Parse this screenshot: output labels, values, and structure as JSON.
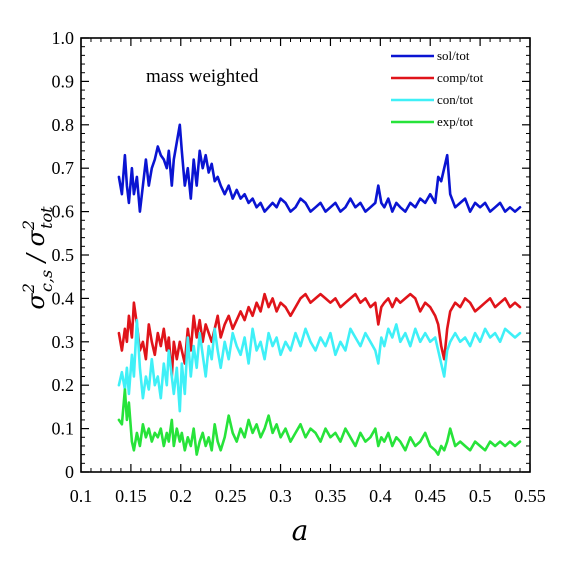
{
  "chart_data": {
    "type": "line",
    "annotation": "mass weighted",
    "xlabel": "a",
    "ylabel": {
      "base": "σ",
      "num_sub": "c,s",
      "den_sub": "tot",
      "sup": "2"
    },
    "xlim": [
      0.1,
      0.55
    ],
    "ylim": [
      0,
      1.0
    ],
    "xticks": [
      "0.1",
      "0.15",
      "0.2",
      "0.25",
      "0.3",
      "0.35",
      "0.4",
      "0.45",
      "0.5",
      "0.55"
    ],
    "yticks": [
      "0",
      "0.1",
      "0.2",
      "0.3",
      "0.4",
      "0.5",
      "0.6",
      "0.7",
      "0.8",
      "0.9",
      "1.0"
    ],
    "legend_position": "top-right",
    "series": [
      {
        "name": "sol/tot",
        "color": "#0a14d2",
        "x": [
          0.138,
          0.141,
          0.144,
          0.146,
          0.148,
          0.151,
          0.153,
          0.156,
          0.159,
          0.162,
          0.165,
          0.168,
          0.171,
          0.174,
          0.177,
          0.18,
          0.183,
          0.186,
          0.188,
          0.191,
          0.193,
          0.196,
          0.199,
          0.201,
          0.204,
          0.207,
          0.21,
          0.213,
          0.216,
          0.219,
          0.222,
          0.225,
          0.228,
          0.231,
          0.234,
          0.237,
          0.24,
          0.244,
          0.248,
          0.252,
          0.256,
          0.26,
          0.264,
          0.268,
          0.272,
          0.276,
          0.28,
          0.284,
          0.288,
          0.292,
          0.296,
          0.3,
          0.305,
          0.31,
          0.315,
          0.32,
          0.325,
          0.33,
          0.335,
          0.34,
          0.345,
          0.35,
          0.355,
          0.36,
          0.365,
          0.37,
          0.375,
          0.38,
          0.385,
          0.39,
          0.395,
          0.398,
          0.401,
          0.404,
          0.408,
          0.412,
          0.416,
          0.42,
          0.425,
          0.43,
          0.435,
          0.44,
          0.445,
          0.45,
          0.455,
          0.458,
          0.461,
          0.464,
          0.467,
          0.47,
          0.475,
          0.48,
          0.485,
          0.49,
          0.495,
          0.5,
          0.505,
          0.51,
          0.515,
          0.52,
          0.525,
          0.53,
          0.535,
          0.54
        ],
        "y": [
          0.68,
          0.64,
          0.73,
          0.66,
          0.62,
          0.7,
          0.64,
          0.68,
          0.6,
          0.66,
          0.72,
          0.66,
          0.7,
          0.72,
          0.75,
          0.73,
          0.72,
          0.7,
          0.74,
          0.66,
          0.72,
          0.76,
          0.8,
          0.74,
          0.66,
          0.7,
          0.63,
          0.72,
          0.66,
          0.74,
          0.7,
          0.73,
          0.69,
          0.71,
          0.67,
          0.68,
          0.66,
          0.64,
          0.66,
          0.63,
          0.65,
          0.63,
          0.64,
          0.62,
          0.63,
          0.61,
          0.62,
          0.6,
          0.61,
          0.62,
          0.61,
          0.63,
          0.62,
          0.6,
          0.61,
          0.63,
          0.62,
          0.6,
          0.61,
          0.62,
          0.6,
          0.61,
          0.62,
          0.6,
          0.61,
          0.63,
          0.61,
          0.62,
          0.6,
          0.61,
          0.62,
          0.66,
          0.62,
          0.61,
          0.63,
          0.6,
          0.62,
          0.61,
          0.6,
          0.62,
          0.61,
          0.63,
          0.62,
          0.64,
          0.62,
          0.68,
          0.67,
          0.7,
          0.73,
          0.64,
          0.61,
          0.62,
          0.63,
          0.6,
          0.62,
          0.61,
          0.62,
          0.6,
          0.61,
          0.62,
          0.6,
          0.61,
          0.6,
          0.61
        ]
      },
      {
        "name": "comp/tot",
        "color": "#e0141a",
        "x": [
          0.138,
          0.141,
          0.144,
          0.146,
          0.148,
          0.151,
          0.153,
          0.156,
          0.159,
          0.162,
          0.165,
          0.168,
          0.171,
          0.174,
          0.177,
          0.18,
          0.183,
          0.186,
          0.188,
          0.191,
          0.193,
          0.196,
          0.199,
          0.201,
          0.204,
          0.207,
          0.21,
          0.213,
          0.216,
          0.219,
          0.222,
          0.225,
          0.228,
          0.231,
          0.234,
          0.237,
          0.24,
          0.244,
          0.248,
          0.252,
          0.256,
          0.26,
          0.264,
          0.268,
          0.272,
          0.276,
          0.28,
          0.284,
          0.288,
          0.292,
          0.296,
          0.3,
          0.305,
          0.31,
          0.315,
          0.32,
          0.325,
          0.33,
          0.335,
          0.34,
          0.345,
          0.35,
          0.355,
          0.36,
          0.365,
          0.37,
          0.375,
          0.38,
          0.385,
          0.39,
          0.395,
          0.398,
          0.401,
          0.404,
          0.408,
          0.412,
          0.416,
          0.42,
          0.425,
          0.43,
          0.435,
          0.44,
          0.445,
          0.45,
          0.455,
          0.458,
          0.461,
          0.464,
          0.467,
          0.47,
          0.475,
          0.48,
          0.485,
          0.49,
          0.495,
          0.5,
          0.505,
          0.51,
          0.515,
          0.52,
          0.525,
          0.53,
          0.535,
          0.54
        ],
        "y": [
          0.32,
          0.28,
          0.33,
          0.3,
          0.36,
          0.31,
          0.39,
          0.34,
          0.28,
          0.3,
          0.26,
          0.34,
          0.3,
          0.27,
          0.32,
          0.29,
          0.33,
          0.28,
          0.31,
          0.22,
          0.3,
          0.26,
          0.3,
          0.28,
          0.25,
          0.33,
          0.28,
          0.36,
          0.31,
          0.35,
          0.3,
          0.34,
          0.32,
          0.3,
          0.33,
          0.36,
          0.31,
          0.34,
          0.36,
          0.33,
          0.35,
          0.37,
          0.35,
          0.38,
          0.36,
          0.39,
          0.37,
          0.41,
          0.38,
          0.4,
          0.37,
          0.39,
          0.38,
          0.36,
          0.38,
          0.4,
          0.41,
          0.39,
          0.4,
          0.41,
          0.4,
          0.39,
          0.4,
          0.38,
          0.39,
          0.4,
          0.41,
          0.39,
          0.4,
          0.38,
          0.39,
          0.34,
          0.38,
          0.39,
          0.4,
          0.38,
          0.4,
          0.39,
          0.4,
          0.41,
          0.4,
          0.37,
          0.39,
          0.38,
          0.36,
          0.34,
          0.29,
          0.26,
          0.33,
          0.37,
          0.39,
          0.38,
          0.4,
          0.39,
          0.37,
          0.38,
          0.39,
          0.4,
          0.38,
          0.39,
          0.4,
          0.38,
          0.39,
          0.38
        ]
      },
      {
        "name": "con/tot",
        "color": "#3ff0f7",
        "x": [
          0.138,
          0.141,
          0.144,
          0.146,
          0.148,
          0.151,
          0.153,
          0.156,
          0.159,
          0.162,
          0.165,
          0.168,
          0.171,
          0.174,
          0.177,
          0.18,
          0.183,
          0.186,
          0.188,
          0.191,
          0.193,
          0.196,
          0.199,
          0.201,
          0.204,
          0.207,
          0.21,
          0.213,
          0.216,
          0.219,
          0.222,
          0.225,
          0.228,
          0.231,
          0.234,
          0.237,
          0.24,
          0.244,
          0.248,
          0.252,
          0.256,
          0.26,
          0.264,
          0.268,
          0.272,
          0.276,
          0.28,
          0.284,
          0.288,
          0.292,
          0.296,
          0.3,
          0.305,
          0.31,
          0.315,
          0.32,
          0.325,
          0.33,
          0.335,
          0.34,
          0.345,
          0.35,
          0.355,
          0.36,
          0.365,
          0.37,
          0.375,
          0.38,
          0.385,
          0.39,
          0.395,
          0.398,
          0.401,
          0.404,
          0.408,
          0.412,
          0.416,
          0.42,
          0.425,
          0.43,
          0.435,
          0.44,
          0.445,
          0.45,
          0.455,
          0.458,
          0.461,
          0.464,
          0.467,
          0.47,
          0.475,
          0.48,
          0.485,
          0.49,
          0.495,
          0.5,
          0.505,
          0.51,
          0.515,
          0.52,
          0.525,
          0.53,
          0.535,
          0.54
        ],
        "y": [
          0.2,
          0.23,
          0.19,
          0.24,
          0.18,
          0.27,
          0.22,
          0.35,
          0.24,
          0.17,
          0.22,
          0.19,
          0.26,
          0.2,
          0.22,
          0.17,
          0.25,
          0.2,
          0.28,
          0.22,
          0.18,
          0.24,
          0.14,
          0.25,
          0.18,
          0.31,
          0.22,
          0.29,
          0.24,
          0.32,
          0.27,
          0.22,
          0.29,
          0.26,
          0.33,
          0.28,
          0.24,
          0.3,
          0.26,
          0.32,
          0.29,
          0.27,
          0.31,
          0.25,
          0.33,
          0.28,
          0.3,
          0.26,
          0.32,
          0.29,
          0.31,
          0.27,
          0.3,
          0.28,
          0.32,
          0.29,
          0.33,
          0.3,
          0.28,
          0.31,
          0.29,
          0.32,
          0.27,
          0.3,
          0.28,
          0.33,
          0.31,
          0.29,
          0.32,
          0.3,
          0.28,
          0.25,
          0.31,
          0.29,
          0.33,
          0.31,
          0.34,
          0.3,
          0.32,
          0.29,
          0.33,
          0.3,
          0.32,
          0.3,
          0.31,
          0.28,
          0.25,
          0.22,
          0.28,
          0.3,
          0.32,
          0.3,
          0.31,
          0.29,
          0.32,
          0.3,
          0.33,
          0.31,
          0.32,
          0.3,
          0.33,
          0.32,
          0.31,
          0.32
        ]
      },
      {
        "name": "exp/tot",
        "color": "#27e33a",
        "x": [
          0.138,
          0.141,
          0.144,
          0.146,
          0.148,
          0.151,
          0.153,
          0.156,
          0.159,
          0.162,
          0.165,
          0.168,
          0.171,
          0.174,
          0.177,
          0.18,
          0.183,
          0.186,
          0.188,
          0.191,
          0.193,
          0.196,
          0.199,
          0.201,
          0.204,
          0.207,
          0.21,
          0.213,
          0.216,
          0.219,
          0.222,
          0.225,
          0.228,
          0.231,
          0.234,
          0.237,
          0.24,
          0.244,
          0.248,
          0.252,
          0.256,
          0.26,
          0.264,
          0.268,
          0.272,
          0.276,
          0.28,
          0.284,
          0.288,
          0.292,
          0.296,
          0.3,
          0.305,
          0.31,
          0.315,
          0.32,
          0.325,
          0.33,
          0.335,
          0.34,
          0.345,
          0.35,
          0.355,
          0.36,
          0.365,
          0.37,
          0.375,
          0.38,
          0.385,
          0.39,
          0.395,
          0.398,
          0.401,
          0.404,
          0.408,
          0.412,
          0.416,
          0.42,
          0.425,
          0.43,
          0.435,
          0.44,
          0.445,
          0.45,
          0.455,
          0.458,
          0.461,
          0.464,
          0.467,
          0.47,
          0.475,
          0.48,
          0.485,
          0.49,
          0.495,
          0.5,
          0.505,
          0.51,
          0.515,
          0.52,
          0.525,
          0.53,
          0.535,
          0.54
        ],
        "y": [
          0.12,
          0.11,
          0.19,
          0.12,
          0.16,
          0.07,
          0.05,
          0.09,
          0.06,
          0.11,
          0.08,
          0.1,
          0.07,
          0.09,
          0.08,
          0.1,
          0.06,
          0.09,
          0.07,
          0.12,
          0.06,
          0.1,
          0.07,
          0.09,
          0.05,
          0.08,
          0.06,
          0.1,
          0.04,
          0.07,
          0.09,
          0.06,
          0.08,
          0.05,
          0.11,
          0.07,
          0.05,
          0.08,
          0.13,
          0.09,
          0.07,
          0.1,
          0.08,
          0.12,
          0.09,
          0.11,
          0.08,
          0.1,
          0.13,
          0.09,
          0.11,
          0.08,
          0.1,
          0.07,
          0.09,
          0.11,
          0.08,
          0.1,
          0.09,
          0.07,
          0.1,
          0.08,
          0.09,
          0.07,
          0.1,
          0.08,
          0.06,
          0.09,
          0.07,
          0.08,
          0.1,
          0.06,
          0.08,
          0.07,
          0.09,
          0.06,
          0.08,
          0.07,
          0.05,
          0.08,
          0.06,
          0.07,
          0.09,
          0.06,
          0.05,
          0.04,
          0.06,
          0.05,
          0.07,
          0.1,
          0.06,
          0.07,
          0.06,
          0.05,
          0.07,
          0.06,
          0.05,
          0.07,
          0.06,
          0.07,
          0.06,
          0.07,
          0.06,
          0.07
        ]
      }
    ]
  }
}
